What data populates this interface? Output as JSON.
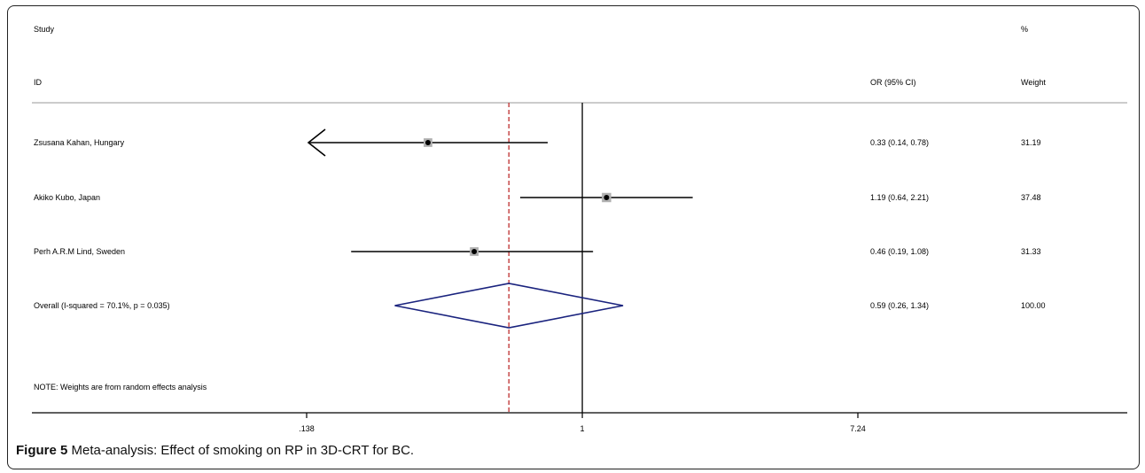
{
  "chart_data": {
    "type": "forest",
    "header": {
      "study_line1": "Study",
      "study_line2": "ID",
      "or_label": "OR (95% CI)",
      "weight_line1": "%",
      "weight_line2": "Weight"
    },
    "x_ticks": [
      {
        "value": 0.138,
        "label": ".138"
      },
      {
        "value": 1,
        "label": "1"
      },
      {
        "value": 7.24,
        "label": "7.24"
      }
    ],
    "x_scale": "log",
    "xlim": [
      0.066,
      15
    ],
    "null_line": 1,
    "studies": [
      {
        "label": "Zsusana Kahan, Hungary",
        "or": 0.33,
        "lower": 0.14,
        "upper": 0.78,
        "or_text": "0.33 (0.14, 0.78)",
        "weight": "31.19",
        "lower_truncated": true
      },
      {
        "label": "Akiko Kubo, Japan",
        "or": 1.19,
        "lower": 0.64,
        "upper": 2.21,
        "or_text": "1.19 (0.64, 2.21)",
        "weight": "37.48",
        "lower_truncated": false
      },
      {
        "label": "Perh A.R.M Lind, Sweden",
        "or": 0.46,
        "lower": 0.19,
        "upper": 1.08,
        "or_text": "0.46 (0.19, 1.08)",
        "weight": "31.33",
        "lower_truncated": false
      }
    ],
    "overall": {
      "label": "Overall  (I-squared = 70.1%, p = 0.035)",
      "or": 0.59,
      "lower": 0.26,
      "upper": 1.34,
      "or_text": "0.59 (0.26, 1.34)",
      "weight": "100.00"
    },
    "note": "NOTE: Weights are from random effects analysis"
  },
  "caption": {
    "label": "Figure 5",
    "text": "Meta-analysis: Effect of smoking on RP in 3D-CRT for BC."
  },
  "colors": {
    "overall_diamond": "#1a237e",
    "overall_line": "#b71c1c",
    "marks": "#000000",
    "weight_box": "#b0b0b0"
  }
}
